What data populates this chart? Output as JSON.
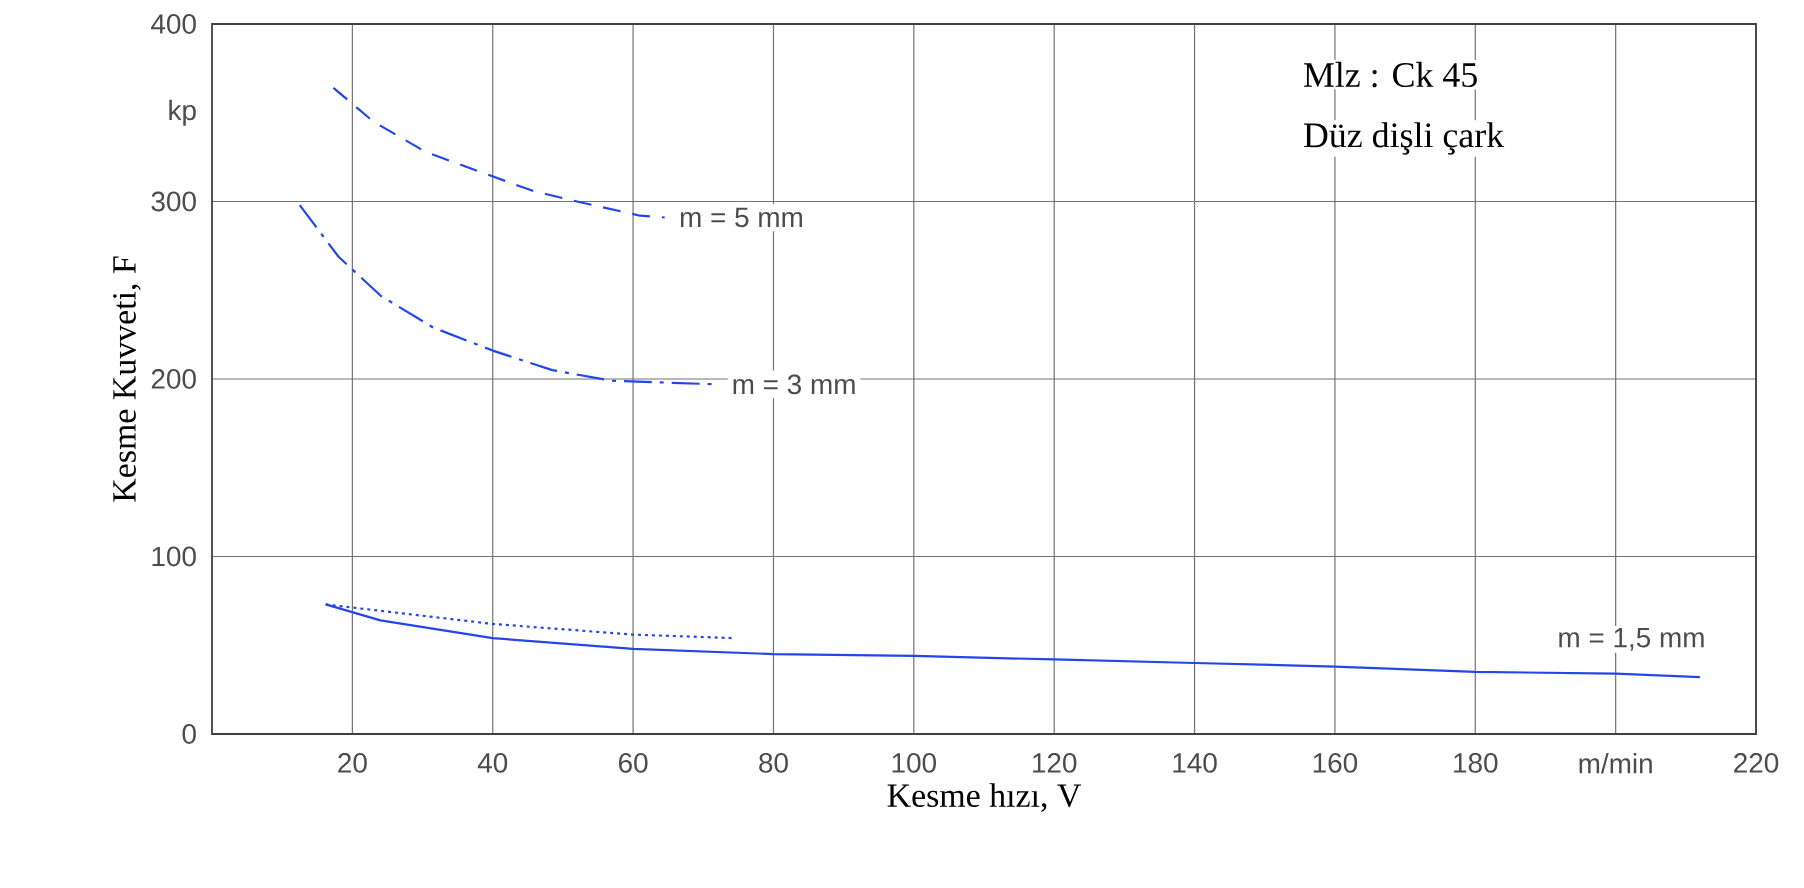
{
  "chart_data": {
    "type": "line",
    "xlabel": "Kesme hızı, V",
    "ylabel": "Kesme Kuvveti, F",
    "xlim": [
      0,
      220
    ],
    "ylim": [
      0,
      400
    ],
    "xticks": [
      20,
      40,
      60,
      80,
      100,
      120,
      140,
      160,
      180,
      {
        "value": 200,
        "label": "m/min"
      },
      220
    ],
    "yticks": [
      0,
      100,
      200,
      300,
      {
        "value": 350,
        "label": "kp"
      },
      400
    ],
    "grid": true,
    "annotations": [
      "Mlz : Ck 45",
      "Düz dişli çark"
    ],
    "series": [
      {
        "name": "m = 5 mm",
        "color": "#2346e8",
        "line_style": "dashed",
        "x": [
          17.3,
          23,
          30.4,
          38,
          45.7,
          52,
          61,
          64.5
        ],
        "values": [
          364,
          345,
          328,
          317,
          306,
          300,
          292,
          291
        ]
      },
      {
        "name": "m = 3 mm",
        "color": "#2346e8",
        "line_style": "dashdot",
        "x": [
          12.5,
          18,
          24,
          31.5,
          40,
          48.5,
          57,
          72
        ],
        "values": [
          298,
          269,
          247,
          229,
          216,
          205,
          199,
          197
        ]
      },
      {
        "name": "m = 1,5 mm",
        "color": "#2346e8",
        "line_style": "solid",
        "x": [
          16.2,
          24,
          40,
          60,
          80,
          100,
          120,
          140,
          160,
          180,
          200,
          212
        ],
        "values": [
          73,
          64,
          54,
          48,
          45,
          44,
          42,
          40,
          38,
          35,
          34,
          32
        ]
      },
      {
        "color": "#2346e8",
        "line_style": "dotted",
        "x": [
          16.2,
          40,
          60,
          74.5
        ],
        "values": [
          73,
          62,
          56,
          54
        ]
      }
    ]
  }
}
